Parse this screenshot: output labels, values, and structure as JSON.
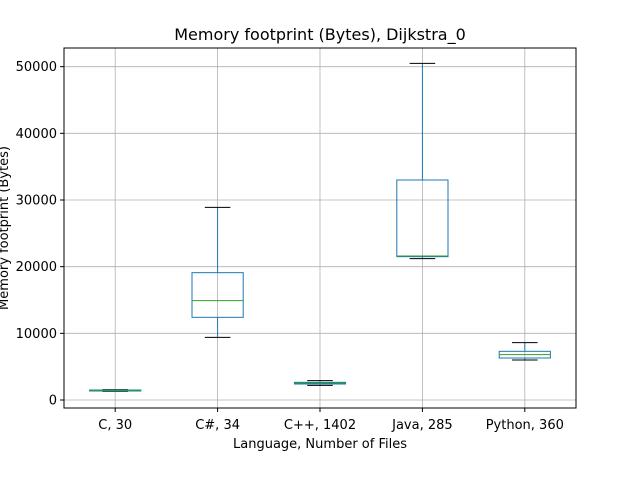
{
  "chart_data": {
    "type": "box",
    "title": "Memory footprint (Bytes), Dijkstra_0",
    "xlabel": "Language, Number of Files",
    "ylabel": "Memory footprint (Bytes)",
    "ylim": [
      -1200,
      52800
    ],
    "yticks": [
      0,
      10000,
      20000,
      30000,
      40000,
      50000
    ],
    "grid": true,
    "colors": {
      "box": "#1f77b4",
      "median": "#2ca02c",
      "whisker": "#1f77b4",
      "cap": "#000000",
      "grid": "#b0b0b0"
    },
    "categories": [
      "C, 30",
      "C#, 34",
      "C++, 1402",
      "Java, 285",
      "Python, 360"
    ],
    "boxes": [
      {
        "whislo": 1300,
        "q1": 1400,
        "med": 1450,
        "q3": 1500,
        "whishi": 1550
      },
      {
        "whislo": 9400,
        "q1": 12400,
        "med": 14900,
        "q3": 19100,
        "whishi": 28900
      },
      {
        "whislo": 2200,
        "q1": 2400,
        "med": 2550,
        "q3": 2650,
        "whishi": 2900
      },
      {
        "whislo": 21200,
        "q1": 21500,
        "med": 21600,
        "q3": 33000,
        "whishi": 50500
      },
      {
        "whislo": 6000,
        "q1": 6300,
        "med": 6800,
        "q3": 7300,
        "whishi": 8600
      }
    ]
  }
}
